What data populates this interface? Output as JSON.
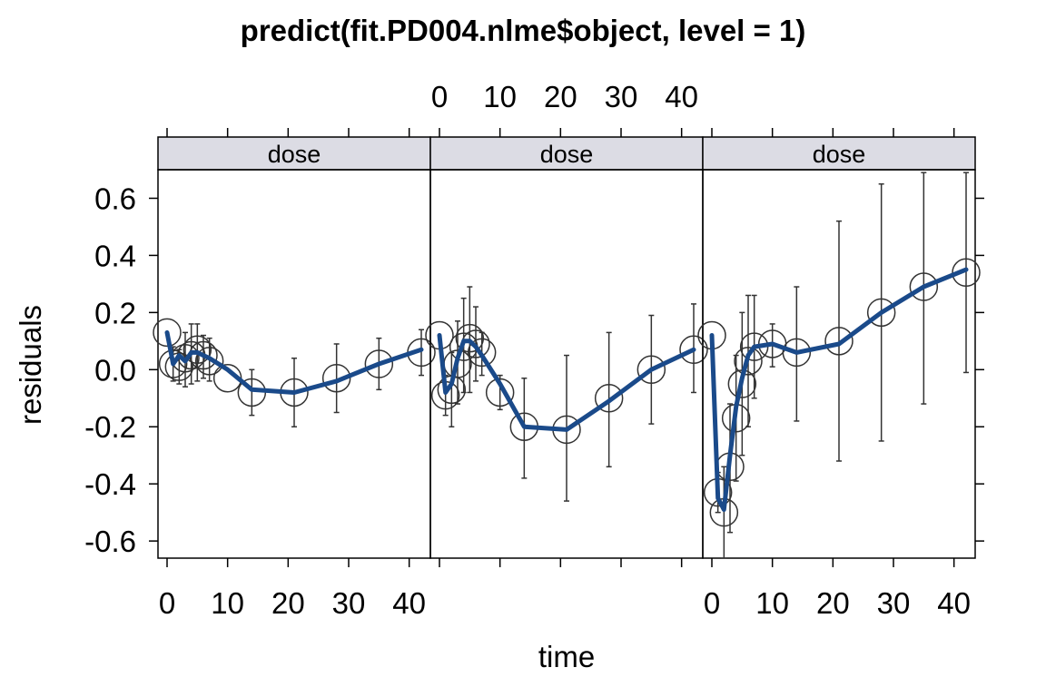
{
  "chart_data": {
    "type": "line",
    "title": "predict(fit.PD004.nlme$object, level = 1)",
    "xlabel": "time",
    "ylabel": "residuals",
    "ylim": [
      -0.66,
      0.7
    ],
    "xlim": [
      -1.5,
      43.5
    ],
    "x_ticks": [
      0,
      10,
      20,
      30,
      40
    ],
    "y_ticks": [
      -0.6,
      -0.4,
      -0.2,
      0.0,
      0.2,
      0.4,
      0.6
    ],
    "y_tick_labels": [
      "-0.6",
      "-0.4",
      "-0.2",
      "0.0",
      "0.2",
      "0.4",
      "0.6"
    ],
    "grid": false,
    "colors": {
      "line": "#1a4a8a",
      "strip": "#dcdce4",
      "points": "#333333"
    },
    "panels": [
      {
        "strip": "dose",
        "points": [
          {
            "x": 0,
            "y": 0.13,
            "lo": 0.13,
            "hi": 0.13
          },
          {
            "x": 1,
            "y": 0.02,
            "lo": -0.04,
            "hi": 0.08
          },
          {
            "x": 2,
            "y": 0.01,
            "lo": -0.05,
            "hi": 0.07
          },
          {
            "x": 3,
            "y": 0.04,
            "lo": -0.06,
            "hi": 0.13
          },
          {
            "x": 4,
            "y": 0.05,
            "lo": -0.05,
            "hi": 0.16
          },
          {
            "x": 5,
            "y": 0.07,
            "lo": -0.04,
            "hi": 0.16
          },
          {
            "x": 6,
            "y": 0.05,
            "lo": -0.03,
            "hi": 0.12
          },
          {
            "x": 7,
            "y": 0.03,
            "lo": -0.04,
            "hi": 0.11
          },
          {
            "x": 10,
            "y": -0.03,
            "lo": -0.03,
            "hi": -0.03
          },
          {
            "x": 14,
            "y": -0.08,
            "lo": -0.16,
            "hi": 0.0
          },
          {
            "x": 21,
            "y": -0.08,
            "lo": -0.2,
            "hi": 0.04
          },
          {
            "x": 28,
            "y": -0.03,
            "lo": -0.15,
            "hi": 0.09
          },
          {
            "x": 35,
            "y": 0.02,
            "lo": -0.07,
            "hi": 0.11
          },
          {
            "x": 42,
            "y": 0.06,
            "lo": -0.02,
            "hi": 0.14
          }
        ],
        "fit": [
          [
            0,
            0.13
          ],
          [
            1,
            0.02
          ],
          [
            2,
            0.05
          ],
          [
            3,
            0.03
          ],
          [
            4,
            0.06
          ],
          [
            5,
            0.06
          ],
          [
            6,
            0.05
          ],
          [
            7,
            0.04
          ],
          [
            10,
            0.0
          ],
          [
            14,
            -0.07
          ],
          [
            21,
            -0.08
          ],
          [
            28,
            -0.04
          ],
          [
            35,
            0.02
          ],
          [
            42,
            0.07
          ]
        ]
      },
      {
        "strip": "dose",
        "points": [
          {
            "x": 0,
            "y": 0.12,
            "lo": 0.12,
            "hi": 0.12
          },
          {
            "x": 1,
            "y": -0.09,
            "lo": -0.16,
            "hi": -0.02
          },
          {
            "x": 2,
            "y": -0.07,
            "lo": -0.2,
            "hi": 0.06
          },
          {
            "x": 3,
            "y": 0.02,
            "lo": -0.12,
            "hi": 0.17
          },
          {
            "x": 4,
            "y": 0.08,
            "lo": -0.08,
            "hi": 0.25
          },
          {
            "x": 5,
            "y": 0.11,
            "lo": -0.08,
            "hi": 0.29
          },
          {
            "x": 6,
            "y": 0.09,
            "lo": -0.04,
            "hi": 0.22
          },
          {
            "x": 7,
            "y": 0.06,
            "lo": -0.02,
            "hi": 0.13
          },
          {
            "x": 10,
            "y": -0.08,
            "lo": -0.14,
            "hi": -0.02
          },
          {
            "x": 14,
            "y": -0.2,
            "lo": -0.38,
            "hi": -0.03
          },
          {
            "x": 21,
            "y": -0.21,
            "lo": -0.46,
            "hi": 0.05
          },
          {
            "x": 28,
            "y": -0.1,
            "lo": -0.34,
            "hi": 0.13
          },
          {
            "x": 35,
            "y": 0.0,
            "lo": -0.19,
            "hi": 0.19
          },
          {
            "x": 42,
            "y": 0.07,
            "lo": -0.08,
            "hi": 0.23
          }
        ],
        "fit": [
          [
            0,
            0.12
          ],
          [
            1,
            -0.08
          ],
          [
            2,
            -0.05
          ],
          [
            3,
            0.04
          ],
          [
            4,
            0.1
          ],
          [
            5,
            0.1
          ],
          [
            6,
            0.08
          ],
          [
            7,
            0.05
          ],
          [
            10,
            -0.05
          ],
          [
            14,
            -0.2
          ],
          [
            21,
            -0.21
          ],
          [
            28,
            -0.11
          ],
          [
            35,
            0.0
          ],
          [
            42,
            0.07
          ]
        ]
      },
      {
        "strip": "dose",
        "points": [
          {
            "x": 0,
            "y": 0.12,
            "lo": 0.12,
            "hi": 0.12
          },
          {
            "x": 1,
            "y": -0.43,
            "lo": -0.5,
            "hi": -0.36
          },
          {
            "x": 2,
            "y": -0.5,
            "lo": -0.66,
            "hi": -0.34
          },
          {
            "x": 3,
            "y": -0.34,
            "lo": -0.57,
            "hi": -0.12
          },
          {
            "x": 4,
            "y": -0.17,
            "lo": -0.39,
            "hi": 0.05
          },
          {
            "x": 5,
            "y": -0.05,
            "lo": -0.3,
            "hi": 0.2
          },
          {
            "x": 6,
            "y": 0.03,
            "lo": -0.2,
            "hi": 0.26
          },
          {
            "x": 7,
            "y": 0.08,
            "lo": -0.1,
            "hi": 0.26
          },
          {
            "x": 10,
            "y": 0.09,
            "lo": 0.01,
            "hi": 0.16
          },
          {
            "x": 14,
            "y": 0.06,
            "lo": -0.18,
            "hi": 0.29
          },
          {
            "x": 21,
            "y": 0.1,
            "lo": -0.32,
            "hi": 0.52
          },
          {
            "x": 28,
            "y": 0.2,
            "lo": -0.25,
            "hi": 0.65
          },
          {
            "x": 35,
            "y": 0.29,
            "lo": -0.12,
            "hi": 0.69
          },
          {
            "x": 42,
            "y": 0.34,
            "lo": -0.01,
            "hi": 0.69
          }
        ],
        "fit": [
          [
            0,
            0.12
          ],
          [
            1,
            -0.45
          ],
          [
            2,
            -0.49
          ],
          [
            3,
            -0.3
          ],
          [
            4,
            -0.13
          ],
          [
            5,
            -0.03
          ],
          [
            6,
            0.05
          ],
          [
            7,
            0.08
          ],
          [
            10,
            0.09
          ],
          [
            14,
            0.06
          ],
          [
            21,
            0.09
          ],
          [
            28,
            0.2
          ],
          [
            35,
            0.29
          ],
          [
            42,
            0.35
          ]
        ]
      }
    ]
  }
}
